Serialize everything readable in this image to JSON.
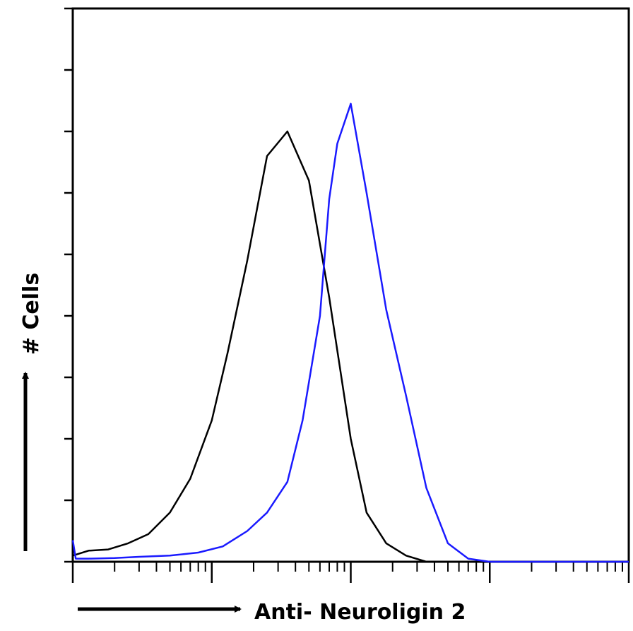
{
  "chart_data": {
    "type": "line",
    "title": "",
    "xlabel": "Anti- Neuroligin 2",
    "ylabel": "# Cells",
    "x_scale": "log",
    "xlim": [
      1,
      10000
    ],
    "ylim": [
      0,
      9
    ],
    "grid": false,
    "legend": "none",
    "series": [
      {
        "color": "#000000",
        "x": [
          1,
          1.3,
          1.8,
          2.5,
          3.5,
          5,
          7,
          10,
          13,
          18,
          25,
          35,
          50,
          70,
          100,
          130,
          180,
          250,
          350,
          500,
          1000,
          10000
        ],
        "y": [
          0.1,
          0.18,
          0.2,
          0.3,
          0.45,
          0.8,
          1.35,
          2.3,
          3.4,
          4.9,
          6.6,
          7.0,
          6.2,
          4.3,
          2.0,
          0.8,
          0.3,
          0.1,
          0,
          0,
          0,
          0
        ]
      },
      {
        "color": "#1a1aff",
        "x": [
          1,
          1.05,
          1.3,
          2,
          3,
          5,
          8,
          12,
          18,
          25,
          35,
          45,
          60,
          70,
          80,
          100,
          130,
          180,
          250,
          350,
          500,
          700,
          1000,
          10000
        ],
        "y": [
          0.35,
          0.05,
          0.05,
          0.06,
          0.08,
          0.1,
          0.15,
          0.25,
          0.5,
          0.8,
          1.3,
          2.3,
          4.0,
          5.9,
          6.8,
          7.45,
          6.0,
          4.1,
          2.7,
          1.2,
          0.3,
          0.05,
          0,
          0
        ]
      }
    ]
  }
}
